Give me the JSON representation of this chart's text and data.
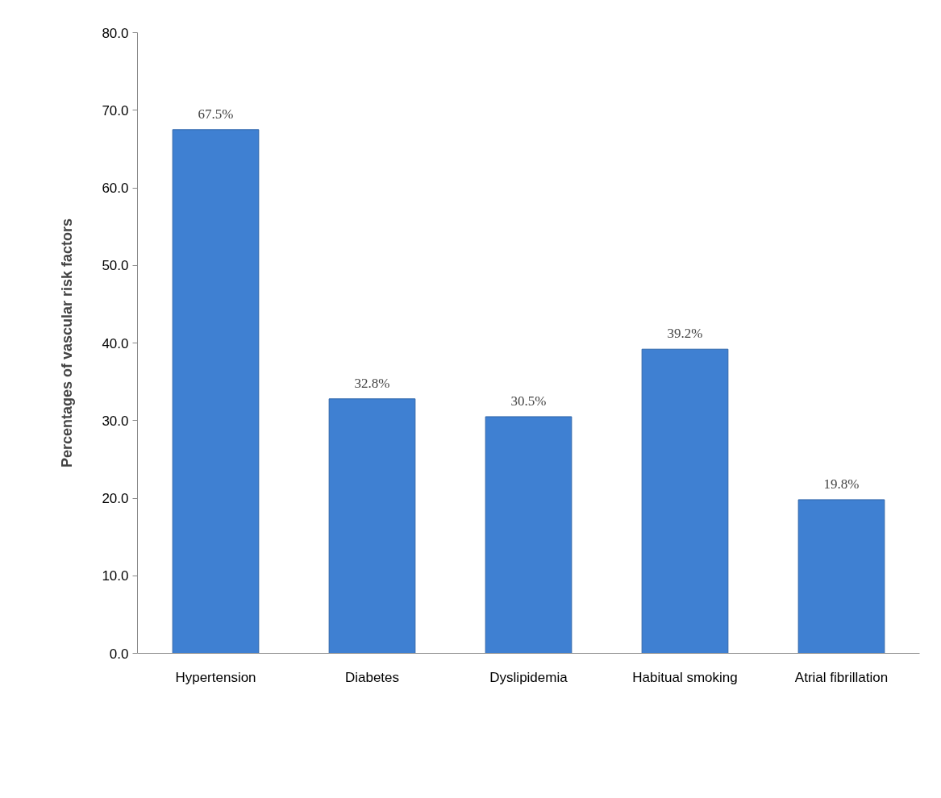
{
  "chart_data": {
    "type": "bar",
    "ylabel": "Percentages of vascular risk factors",
    "categories": [
      "Hypertension",
      "Diabetes",
      "Dyslipidemia",
      "Habitual smoking",
      "Atrial fibrillation"
    ],
    "values": [
      67.5,
      32.8,
      30.5,
      39.2,
      19.8
    ],
    "value_labels": [
      "67.5%",
      "32.8%",
      "30.5%",
      "39.2%",
      "19.8%"
    ],
    "color": "#3f80d2",
    "ylim": [
      0,
      80
    ],
    "yticks": [
      {
        "value": 0,
        "label": "0.0"
      },
      {
        "value": 10,
        "label": "10.0"
      },
      {
        "value": 20,
        "label": "20.0"
      },
      {
        "value": 30,
        "label": "30.0"
      },
      {
        "value": 40,
        "label": "40.0"
      },
      {
        "value": 50,
        "label": "50.0"
      },
      {
        "value": 60,
        "label": "60.0"
      },
      {
        "value": 70,
        "label": "70.0"
      },
      {
        "value": 80,
        "label": "80.0"
      }
    ],
    "grid": false
  }
}
